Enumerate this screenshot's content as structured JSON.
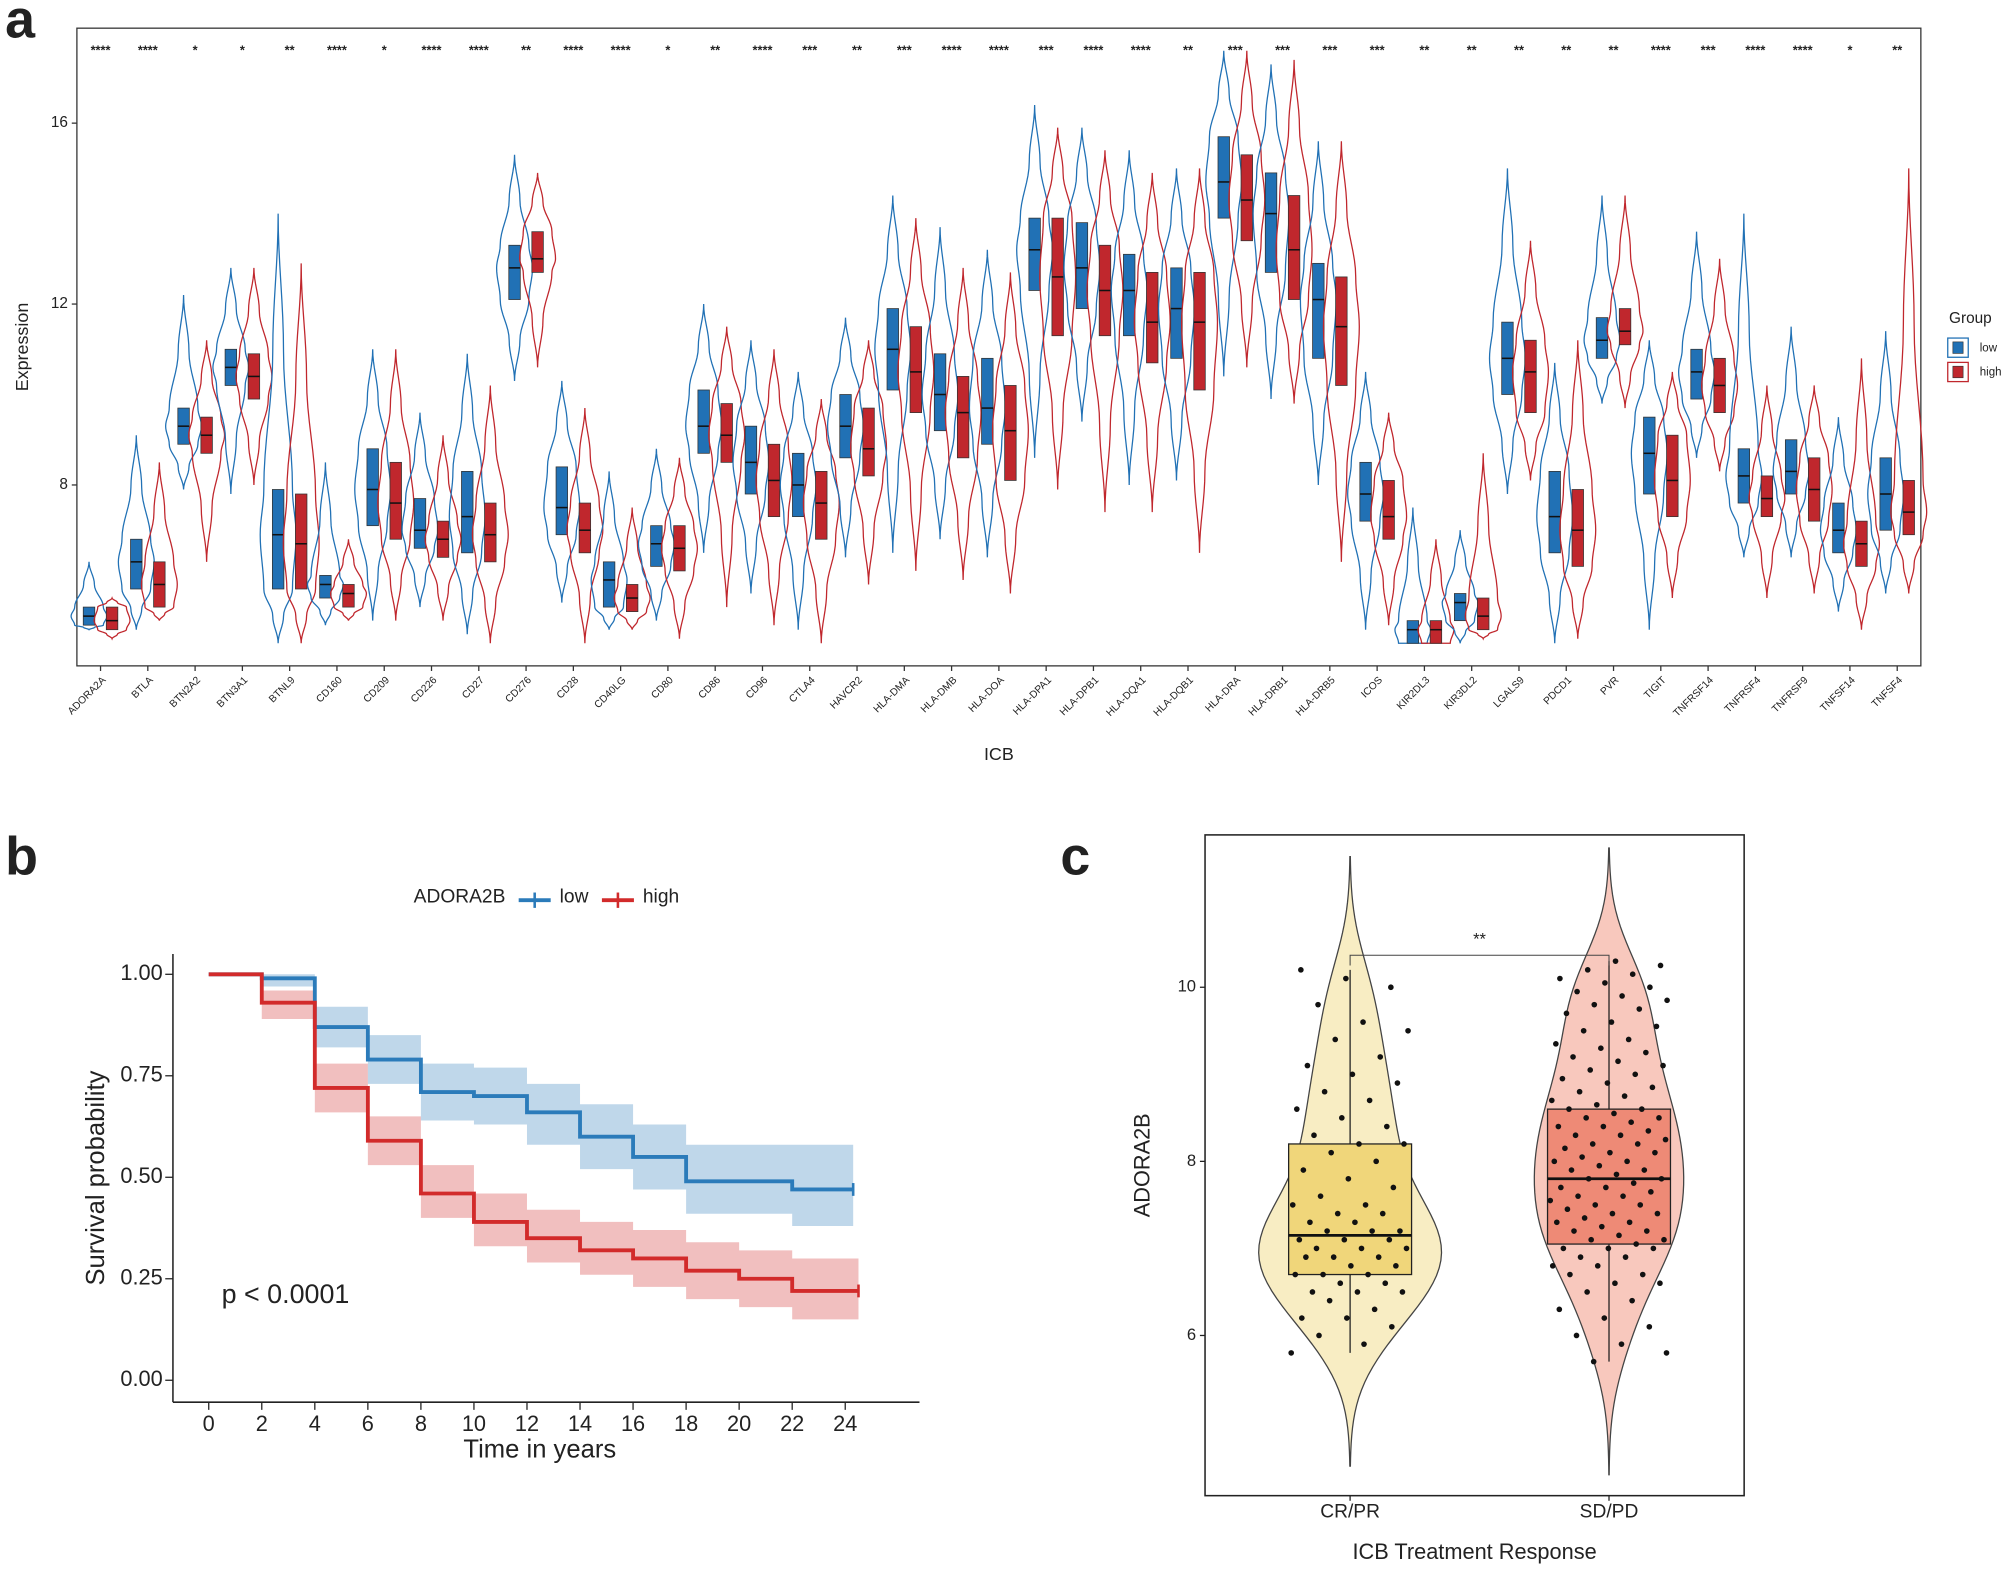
{
  "chart_data": [
    {
      "type": "violin",
      "panel_label": "a",
      "categories": [
        "ADORA2A",
        "BTLA",
        "BTN2A2",
        "BTN3A1",
        "BTNL9",
        "CD160",
        "CD209",
        "CD226",
        "CD27",
        "CD276",
        "CD28",
        "CD40LG",
        "CD80",
        "CD86",
        "CD96",
        "CTLA4",
        "HAVCR2",
        "HLA-DMA",
        "HLA-DMB",
        "HLA-DOA",
        "HLA-DPA1",
        "HLA-DPB1",
        "HLA-DQA1",
        "HLA-DQB1",
        "HLA-DRA",
        "HLA-DRB1",
        "HLA-DRB5",
        "ICOS",
        "KIR2DL3",
        "KIR3DL2",
        "LGALS9",
        "PDCD1",
        "PVR",
        "TIGIT",
        "TNFRSF14",
        "TNFRSF4",
        "TNFRSF9",
        "TNFSF14",
        "TNFSF4"
      ],
      "significance": [
        "****",
        "****",
        "*",
        "*",
        "**",
        "****",
        "*",
        "****",
        "****",
        "**",
        "****",
        "****",
        "*",
        "**",
        "****",
        "***",
        "**",
        "***",
        "****",
        "****",
        "***",
        "****",
        "****",
        "**",
        "***",
        "***",
        "***",
        "***",
        "**",
        "**",
        "**",
        "**",
        "**",
        "****",
        "***",
        "****",
        "****",
        "*",
        "**"
      ],
      "series": [
        {
          "name": "low",
          "color": "#2171b5",
          "min": [
            4.8,
            4.8,
            7.9,
            7.8,
            4.5,
            4.9,
            5.0,
            5.3,
            4.7,
            10.3,
            5.4,
            4.8,
            5.0,
            6.5,
            5.6,
            4.8,
            6.4,
            6.5,
            6.8,
            6.4,
            8.6,
            9.4,
            8.0,
            8.1,
            10.4,
            9.9,
            8.0,
            4.8,
            4.5,
            4.5,
            7.8,
            4.5,
            9.8,
            4.8,
            8.6,
            6.4,
            6.4,
            5.2,
            5.6
          ],
          "q1": [
            4.9,
            5.7,
            8.9,
            10.2,
            5.7,
            5.5,
            7.1,
            6.6,
            6.5,
            12.1,
            6.9,
            5.3,
            6.2,
            8.7,
            7.8,
            7.3,
            8.6,
            10.1,
            9.2,
            8.9,
            12.3,
            11.9,
            11.3,
            10.8,
            13.9,
            12.7,
            10.8,
            7.2,
            4.5,
            5.0,
            10.0,
            6.5,
            10.8,
            7.8,
            9.9,
            7.6,
            7.8,
            6.5,
            7.0
          ],
          "median": [
            5.1,
            6.3,
            9.3,
            10.6,
            6.9,
            5.8,
            7.9,
            7.0,
            7.3,
            12.8,
            7.5,
            5.9,
            6.7,
            9.3,
            8.5,
            8.0,
            9.3,
            11.0,
            10.0,
            9.7,
            13.2,
            12.8,
            12.3,
            11.9,
            14.7,
            14.0,
            12.1,
            7.8,
            4.8,
            5.4,
            10.8,
            7.3,
            11.2,
            8.7,
            10.5,
            8.2,
            8.3,
            7.0,
            7.8
          ],
          "q3": [
            5.3,
            6.8,
            9.7,
            11.0,
            7.9,
            6.0,
            8.8,
            7.7,
            8.3,
            13.3,
            8.4,
            6.3,
            7.1,
            10.1,
            9.3,
            8.7,
            10.0,
            11.9,
            10.9,
            10.8,
            13.9,
            13.8,
            13.1,
            12.8,
            15.7,
            14.9,
            12.9,
            8.5,
            5.0,
            5.6,
            11.6,
            8.3,
            11.7,
            9.5,
            11.0,
            8.8,
            9.0,
            7.6,
            8.6
          ],
          "max": [
            6.3,
            9.1,
            12.2,
            12.8,
            14.0,
            8.5,
            11.0,
            9.6,
            10.9,
            15.3,
            10.3,
            8.3,
            8.8,
            12.0,
            11.2,
            10.5,
            11.7,
            14.4,
            13.7,
            13.2,
            16.4,
            15.9,
            15.4,
            15.0,
            17.6,
            17.3,
            15.6,
            10.5,
            7.5,
            7.0,
            15.0,
            10.7,
            14.4,
            11.2,
            13.6,
            14.0,
            11.5,
            9.5,
            11.4
          ]
        },
        {
          "name": "high",
          "color": "#c0272d",
          "min": [
            4.6,
            5.0,
            6.3,
            8.0,
            4.5,
            5.0,
            5.0,
            5.0,
            4.5,
            10.6,
            4.5,
            4.8,
            4.6,
            5.3,
            4.9,
            4.5,
            5.8,
            6.1,
            5.9,
            5.6,
            7.9,
            7.4,
            7.4,
            6.5,
            10.6,
            9.8,
            6.3,
            4.9,
            4.5,
            4.6,
            8.1,
            4.6,
            9.7,
            5.5,
            8.3,
            5.5,
            5.6,
            4.8,
            5.6
          ],
          "q1": [
            4.8,
            5.3,
            8.7,
            9.9,
            5.7,
            5.3,
            6.8,
            6.4,
            6.3,
            12.7,
            6.5,
            5.2,
            6.1,
            8.5,
            7.3,
            6.8,
            8.2,
            9.6,
            8.6,
            8.1,
            11.3,
            11.3,
            10.7,
            10.1,
            13.4,
            12.1,
            10.2,
            6.8,
            4.5,
            4.8,
            9.6,
            6.2,
            11.1,
            7.3,
            9.6,
            7.3,
            7.2,
            6.2,
            6.9
          ],
          "median": [
            5.0,
            5.8,
            9.1,
            10.4,
            6.7,
            5.6,
            7.6,
            6.8,
            6.9,
            13.0,
            7.0,
            5.5,
            6.6,
            9.1,
            8.1,
            7.6,
            8.8,
            10.5,
            9.6,
            9.2,
            12.6,
            12.3,
            11.6,
            11.6,
            14.3,
            13.2,
            11.5,
            7.3,
            4.8,
            5.1,
            10.5,
            7.0,
            11.4,
            8.1,
            10.2,
            7.7,
            7.9,
            6.7,
            7.4
          ],
          "q3": [
            5.3,
            6.3,
            9.5,
            10.9,
            7.8,
            5.8,
            8.5,
            7.2,
            7.6,
            13.6,
            7.6,
            5.8,
            7.1,
            9.8,
            8.9,
            8.3,
            9.7,
            11.5,
            10.4,
            10.2,
            13.9,
            13.3,
            12.7,
            12.7,
            15.3,
            14.4,
            12.6,
            8.1,
            5.0,
            5.5,
            11.2,
            7.9,
            11.9,
            9.1,
            10.8,
            8.2,
            8.6,
            7.2,
            8.1
          ],
          "max": [
            5.5,
            8.5,
            11.2,
            12.8,
            12.9,
            6.8,
            11.0,
            9.1,
            10.2,
            14.9,
            9.7,
            7.5,
            8.6,
            11.5,
            11.0,
            9.9,
            11.2,
            13.9,
            12.8,
            12.7,
            15.9,
            15.4,
            14.9,
            15.0,
            17.6,
            17.4,
            15.6,
            9.6,
            6.8,
            8.7,
            13.4,
            11.2,
            14.4,
            10.5,
            13.0,
            10.2,
            10.2,
            10.8,
            15.0
          ]
        }
      ],
      "xlabel": "ICB",
      "ylabel": "Expression",
      "ylim": [
        4.0,
        18.1
      ],
      "yticks": [
        8,
        12,
        16
      ],
      "legend_title": "Group",
      "legend": "right"
    },
    {
      "type": "km",
      "panel_label": "b",
      "legend_title": "ADORA2B",
      "legend": "top",
      "series": [
        {
          "name": "low",
          "color": "#2b7bba",
          "x": [
            0,
            2,
            4,
            6,
            8,
            10,
            12,
            14,
            16,
            18,
            20,
            22,
            24.3
          ],
          "values": [
            1,
            0.99,
            0.87,
            0.79,
            0.71,
            0.7,
            0.66,
            0.6,
            0.55,
            0.49,
            0.49,
            0.47,
            0.47
          ],
          "upper": [
            1,
            1,
            0.92,
            0.85,
            0.78,
            0.77,
            0.73,
            0.68,
            0.63,
            0.58,
            0.58,
            0.58,
            0.58
          ],
          "lower": [
            1,
            0.97,
            0.82,
            0.73,
            0.64,
            0.63,
            0.58,
            0.52,
            0.47,
            0.41,
            0.41,
            0.38,
            0.38
          ]
        },
        {
          "name": "high",
          "color": "#d22b2b",
          "x": [
            0,
            2,
            4,
            6,
            8,
            10,
            12,
            14,
            16,
            18,
            20,
            22,
            24.5
          ],
          "values": [
            1,
            0.93,
            0.72,
            0.59,
            0.46,
            0.39,
            0.35,
            0.32,
            0.3,
            0.27,
            0.25,
            0.22,
            0.22
          ],
          "upper": [
            1,
            0.96,
            0.78,
            0.65,
            0.53,
            0.46,
            0.42,
            0.39,
            0.37,
            0.34,
            0.32,
            0.3,
            0.3
          ],
          "lower": [
            1,
            0.89,
            0.66,
            0.53,
            0.4,
            0.33,
            0.29,
            0.26,
            0.23,
            0.2,
            0.18,
            0.15,
            0.15
          ]
        }
      ],
      "annotation": "p < 0.0001",
      "xlabel": "Time in years",
      "ylabel": "Survival probability",
      "xlim": [
        -1.35,
        26.8
      ],
      "ylim": [
        -0.054,
        1.05
      ],
      "xticks": [
        0,
        2,
        4,
        6,
        8,
        10,
        12,
        14,
        16,
        18,
        20,
        22,
        24
      ],
      "yticks": [
        {
          "value": 0,
          "label": "0.00"
        },
        0.25,
        {
          "value": 0.5,
          "label": "0.50"
        },
        0.75,
        {
          "value": 1,
          "label": "1.00"
        }
      ]
    },
    {
      "type": "violin_box",
      "panel_label": "c",
      "categories": [
        "CR/PR",
        "SD/PD"
      ],
      "groups": [
        {
          "color": "#f0d67a",
          "violin_color": "#f8edc3",
          "q1": 6.7,
          "median": 7.15,
          "q3": 8.2,
          "whisker_low": 5.8,
          "whisker_high": 10.2,
          "points": [
            5.8,
            5.9,
            6.0,
            6.1,
            6.2,
            6.2,
            6.3,
            6.4,
            6.5,
            6.5,
            6.5,
            6.6,
            6.6,
            6.7,
            6.7,
            6.7,
            6.8,
            6.8,
            6.9,
            6.9,
            6.9,
            7.0,
            7.0,
            7.0,
            7.1,
            7.1,
            7.1,
            7.2,
            7.2,
            7.2,
            7.3,
            7.3,
            7.4,
            7.4,
            7.5,
            7.5,
            7.6,
            7.7,
            7.8,
            7.9,
            8.0,
            8.1,
            8.2,
            8.2,
            8.3,
            8.4,
            8.5,
            8.6,
            8.7,
            8.8,
            8.9,
            9.0,
            9.1,
            9.2,
            9.4,
            9.5,
            9.6,
            9.8,
            10.0,
            10.1,
            10.2
          ]
        },
        {
          "color": "#ee8a76",
          "violin_color": "#f8c8bd",
          "q1": 7.05,
          "median": 7.8,
          "q3": 8.6,
          "whisker_low": 5.7,
          "whisker_high": 10.3,
          "points": [
            5.7,
            5.8,
            5.9,
            6.0,
            6.1,
            6.2,
            6.3,
            6.4,
            6.5,
            6.6,
            6.6,
            6.7,
            6.7,
            6.8,
            6.8,
            6.9,
            6.9,
            7.0,
            7.0,
            7.0,
            7.05,
            7.1,
            7.1,
            7.15,
            7.2,
            7.2,
            7.25,
            7.3,
            7.3,
            7.35,
            7.4,
            7.4,
            7.45,
            7.5,
            7.5,
            7.55,
            7.6,
            7.6,
            7.65,
            7.7,
            7.7,
            7.75,
            7.8,
            7.8,
            7.85,
            7.9,
            7.9,
            7.95,
            8.0,
            8.0,
            8.05,
            8.1,
            8.1,
            8.15,
            8.2,
            8.2,
            8.25,
            8.3,
            8.3,
            8.35,
            8.4,
            8.4,
            8.45,
            8.5,
            8.5,
            8.55,
            8.6,
            8.6,
            8.65,
            8.7,
            8.75,
            8.8,
            8.85,
            8.9,
            8.95,
            9.0,
            9.05,
            9.1,
            9.15,
            9.2,
            9.25,
            9.3,
            9.35,
            9.4,
            9.5,
            9.55,
            9.6,
            9.7,
            9.75,
            9.8,
            9.85,
            9.9,
            9.95,
            10.0,
            10.05,
            10.1,
            10.15,
            10.2,
            10.25,
            10.3
          ]
        }
      ],
      "annotation": "**",
      "xlabel": "ICB Treatment Response",
      "ylabel": "ADORA2B",
      "ylim": [
        4.16,
        11.75
      ],
      "yticks": [
        6,
        8,
        10
      ]
    }
  ]
}
